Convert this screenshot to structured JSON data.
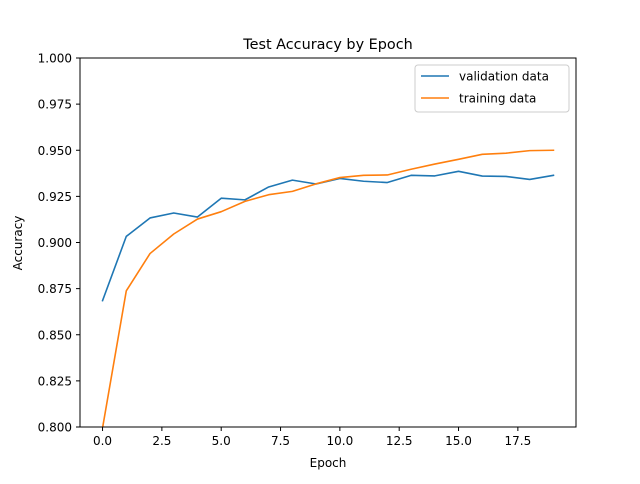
{
  "chart_data": {
    "type": "line",
    "title": "Test Accuracy by Epoch",
    "xlabel": "Epoch",
    "ylabel": "Accuracy",
    "xlim": [
      -0.95,
      19.95
    ],
    "ylim": [
      0.8,
      1.0
    ],
    "x_ticks": [
      0.0,
      2.5,
      5.0,
      7.5,
      10.0,
      12.5,
      15.0,
      17.5
    ],
    "x_tick_labels": [
      "0.0",
      "2.5",
      "5.0",
      "7.5",
      "10.0",
      "12.5",
      "15.0",
      "17.5"
    ],
    "y_ticks": [
      0.8,
      0.825,
      0.85,
      0.875,
      0.9,
      0.925,
      0.95,
      0.975,
      1.0
    ],
    "y_tick_labels": [
      "0.800",
      "0.825",
      "0.850",
      "0.875",
      "0.900",
      "0.925",
      "0.950",
      "0.975",
      "1.000"
    ],
    "grid": false,
    "legend_position": "upper-right",
    "x": [
      0,
      1,
      2,
      3,
      4,
      5,
      6,
      7,
      8,
      9,
      10,
      11,
      12,
      13,
      14,
      15,
      16,
      17,
      18,
      19
    ],
    "series": [
      {
        "name": "validation data",
        "color": "#1f77b4",
        "values": [
          0.8685,
          0.9033,
          0.9133,
          0.916,
          0.9138,
          0.924,
          0.9231,
          0.9301,
          0.9338,
          0.9317,
          0.9347,
          0.9332,
          0.9325,
          0.9364,
          0.9361,
          0.9386,
          0.936,
          0.9358,
          0.9342,
          0.9364
        ]
      },
      {
        "name": "training data",
        "color": "#ff7f0e",
        "values": [
          0.7995,
          0.8738,
          0.894,
          0.9046,
          0.9127,
          0.9167,
          0.9223,
          0.9259,
          0.9277,
          0.9318,
          0.9352,
          0.9364,
          0.9366,
          0.9397,
          0.9425,
          0.9451,
          0.9478,
          0.9484,
          0.9498,
          0.95
        ]
      }
    ]
  }
}
